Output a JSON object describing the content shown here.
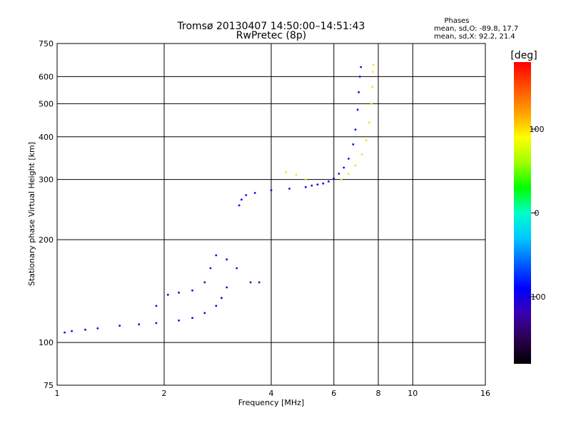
{
  "chart_data": {
    "type": "scatter",
    "title": "Tromsø 20130407 14:50:00–14:51:43",
    "subtitle": "RwPretec (8p)",
    "xlabel": "Frequency [MHz]",
    "ylabel": "Stationary phase Virtual Height [km]",
    "x_scale": "log",
    "y_scale": "log",
    "xlim": [
      1,
      16
    ],
    "ylim": [
      75,
      750
    ],
    "x_ticks": [
      1,
      2,
      4,
      6,
      8,
      10,
      16
    ],
    "y_ticks": [
      75,
      100,
      200,
      300,
      400,
      500,
      600,
      750
    ],
    "x_tick_labels": [
      "1",
      "2",
      "4",
      "6",
      "8",
      "10",
      "16"
    ],
    "y_tick_labels": [
      "75",
      "100",
      "200",
      "300",
      "400",
      "500",
      "600",
      "750"
    ],
    "grid": true,
    "phases": {
      "heading": "Phases",
      "line_o": "mean, sd,O: -89.8, 17.7",
      "line_x": "mean, sd,X: 92.2, 21.4"
    },
    "colorbar": {
      "label": "[deg]",
      "range": [
        -180,
        180
      ],
      "ticks": [
        100,
        0,
        -100
      ],
      "tick_labels": [
        "100",
        "0",
        "-100"
      ],
      "colormap": [
        "#000000",
        "#2d0050",
        "#3a00b0",
        "#0000ff",
        "#0060ff",
        "#00c8ff",
        "#00ffc8",
        "#00ff00",
        "#a0ff00",
        "#ffff00",
        "#ffa000",
        "#ff5000",
        "#ff0000"
      ]
    },
    "series": [
      {
        "points_f_region_o": [
          [
            5.0,
            285
          ],
          [
            5.2,
            288
          ],
          [
            5.4,
            290
          ],
          [
            5.6,
            292
          ],
          [
            5.8,
            296
          ],
          [
            6.0,
            302
          ],
          [
            6.2,
            312
          ],
          [
            6.4,
            325
          ],
          [
            6.6,
            345
          ],
          [
            6.8,
            380
          ],
          [
            6.9,
            420
          ],
          [
            7.0,
            480
          ],
          [
            7.05,
            540
          ],
          [
            7.1,
            600
          ],
          [
            7.15,
            640
          ],
          [
            4.5,
            282
          ],
          [
            4.0,
            279
          ],
          [
            3.6,
            274
          ],
          [
            3.4,
            270
          ],
          [
            3.3,
            262
          ],
          [
            3.25,
            252
          ]
        ],
        "phase": -100
      },
      {
        "points_f_region_x": [
          [
            6.3,
            300
          ],
          [
            6.6,
            312
          ],
          [
            6.9,
            330
          ],
          [
            7.2,
            355
          ],
          [
            7.4,
            390
          ],
          [
            7.55,
            440
          ],
          [
            7.65,
            500
          ],
          [
            7.7,
            560
          ],
          [
            7.72,
            620
          ],
          [
            7.75,
            650
          ],
          [
            5.0,
            300
          ],
          [
            4.7,
            310
          ],
          [
            4.4,
            315
          ]
        ],
        "phase": 100
      },
      {
        "points_e_region_o": [
          [
            1.05,
            107
          ],
          [
            1.1,
            108
          ],
          [
            1.2,
            109
          ],
          [
            1.3,
            110
          ],
          [
            1.5,
            112
          ],
          [
            1.7,
            113
          ],
          [
            1.9,
            114
          ],
          [
            2.2,
            116
          ],
          [
            2.4,
            118
          ],
          [
            2.6,
            122
          ],
          [
            2.8,
            128
          ],
          [
            2.9,
            135
          ],
          [
            3.0,
            145
          ]
        ],
        "phase": -100
      },
      {
        "points_e_region_upper": [
          [
            1.9,
            128
          ],
          [
            2.05,
            138
          ],
          [
            2.2,
            140
          ],
          [
            2.4,
            142
          ],
          [
            2.6,
            150
          ],
          [
            2.7,
            165
          ],
          [
            2.8,
            180
          ],
          [
            3.0,
            175
          ],
          [
            3.2,
            165
          ],
          [
            3.5,
            150
          ],
          [
            3.7,
            150
          ]
        ],
        "phase": -110
      }
    ]
  }
}
